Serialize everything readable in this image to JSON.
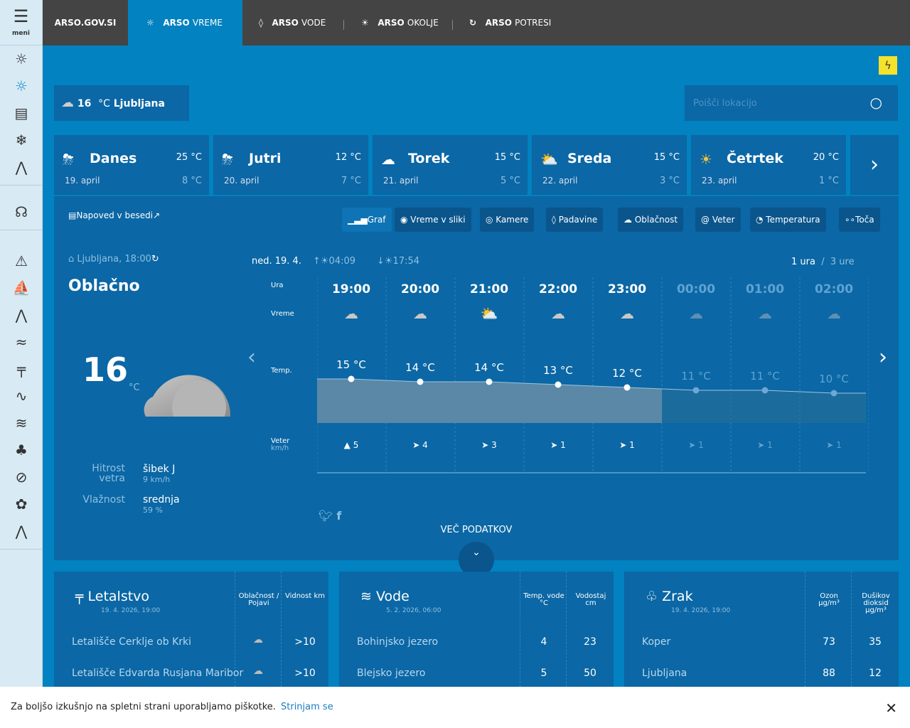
{
  "sidebar": {
    "menu_label": "meni",
    "icons": [
      "weather-off-icon",
      "sun-icon",
      "document-icon",
      "snowflake-icon",
      "mountain-icon",
      "headset-icon",
      "warning-icon",
      "ship-icon",
      "peaks-icon",
      "wind-icon",
      "aviation-icon",
      "chart-icon",
      "waves-icon",
      "tree-icon",
      "no-drop-icon",
      "pollen-icon",
      "water-icon"
    ]
  },
  "topnav": {
    "items": [
      {
        "bold": "ARSO.GOV.SI",
        "light": ""
      },
      {
        "bold": "ARSO",
        "light": "VREME",
        "icon": "☼"
      },
      {
        "bold": "ARSO",
        "light": "VODE",
        "icon": "◊"
      },
      {
        "bold": "ARSO",
        "light": "OKOLJE",
        "icon": "☀"
      },
      {
        "bold": "ARSO",
        "light": "POTRESI",
        "icon": "↻"
      }
    ]
  },
  "current_badge": {
    "temp": "16",
    "unit": "°C",
    "city": "Ljubljana"
  },
  "search": {
    "placeholder": "Poišči lokacijo"
  },
  "days": [
    {
      "name": "Danes",
      "date": "19. april",
      "high": "25 °C",
      "low": "8 °C",
      "icon": "⛈"
    },
    {
      "name": "Jutri",
      "date": "20. april",
      "high": "12 °C",
      "low": "7 °C",
      "icon": "⛈"
    },
    {
      "name": "Torek",
      "date": "21. april",
      "high": "15 °C",
      "low": "5 °C",
      "icon": "☁"
    },
    {
      "name": "Sreda",
      "date": "22. april",
      "high": "15 °C",
      "low": "3 °C",
      "icon": "⛅"
    },
    {
      "name": "Četrtek",
      "date": "23. april",
      "high": "20 °C",
      "low": "1 °C",
      "icon": "☀"
    }
  ],
  "text_forecast_link": "Napoved v besedi",
  "tabs": [
    "Graf",
    "Vreme v sliki",
    "Kamere",
    "Padavine",
    "Oblačnost",
    "Veter",
    "Temperatura",
    "Toča"
  ],
  "location": {
    "station": "Ljubljana, 18:00",
    "condition": "Oblačno",
    "temp": "16",
    "unit": "°C",
    "wind_label": "Hitrost vetra",
    "wind_value": "šibek J",
    "wind_speed": "9 km/h",
    "humidity_label": "Vlažnost",
    "humidity_value": "srednja",
    "humidity_pct": "59 %"
  },
  "hourly": {
    "date": "ned. 19. 4.",
    "sunrise": "04:09",
    "sunset": "17:54",
    "res_1": "1 ura",
    "res_sep": "/",
    "res_3": "3 ure",
    "row_labels": {
      "hour": "Ura",
      "weather": "Vreme",
      "temp": "Temp.",
      "wind": "Veter",
      "wind_unit": "km/h"
    },
    "hours": [
      "19:00",
      "20:00",
      "21:00",
      "22:00",
      "23:00",
      "00:00",
      "01:00",
      "02:00"
    ],
    "temps": [
      15,
      14,
      14,
      13,
      12,
      11,
      11,
      10
    ],
    "temp_labels": [
      "15 °C",
      "14 °C",
      "14 °C",
      "13 °C",
      "12 °C",
      "11 °C",
      "11 °C",
      "10 °C"
    ],
    "wind": [
      "5",
      "4",
      "3",
      "1",
      "1",
      "1",
      "1",
      "1"
    ],
    "wind_arrows": [
      "▲",
      "➤",
      "➤",
      "➤",
      "➤",
      "➤",
      "➤",
      "➤"
    ]
  },
  "more": "VEČ PODATKOV",
  "aviation": {
    "title": "Letalstvo",
    "date": "19. 4. 2026, 19:00",
    "col1": "Oblačnost / Pojavi",
    "col2": "Vidnost km",
    "rows": [
      {
        "name": "Letališče Cerklje ob Krki",
        "vis": ">10"
      },
      {
        "name": "Letališče Edvarda Rusjana Maribor",
        "vis": ">10"
      }
    ]
  },
  "water": {
    "title": "Vode",
    "date": "5. 2. 2026, 06:00",
    "col1": "Temp. vode °C",
    "col2": "Vodostaj cm",
    "rows": [
      {
        "name": "Bohinjsko jezero",
        "t": "4",
        "l": "23"
      },
      {
        "name": "Blejsko jezero",
        "t": "5",
        "l": "50"
      }
    ]
  },
  "air": {
    "title": "Zrak",
    "date": "19. 4. 2026, 19:00",
    "col1": "Ozon µg/m³",
    "col2": "Dušikov dioksid µg/m³",
    "rows": [
      {
        "name": "Koper",
        "o": "73",
        "n": "35"
      },
      {
        "name": "Ljubljana",
        "o": "88",
        "n": "12"
      }
    ]
  },
  "cookie": {
    "text": "Za boljšo izkušnjo na spletni strani uporabljamo piškotke.",
    "accept": "Strinjam se"
  },
  "colors": {
    "background": "#0282c0",
    "panel": "#0b67a5",
    "topbar": "#444444",
    "sidebar": "#d8eaf4",
    "warning": "#f4e22c"
  }
}
